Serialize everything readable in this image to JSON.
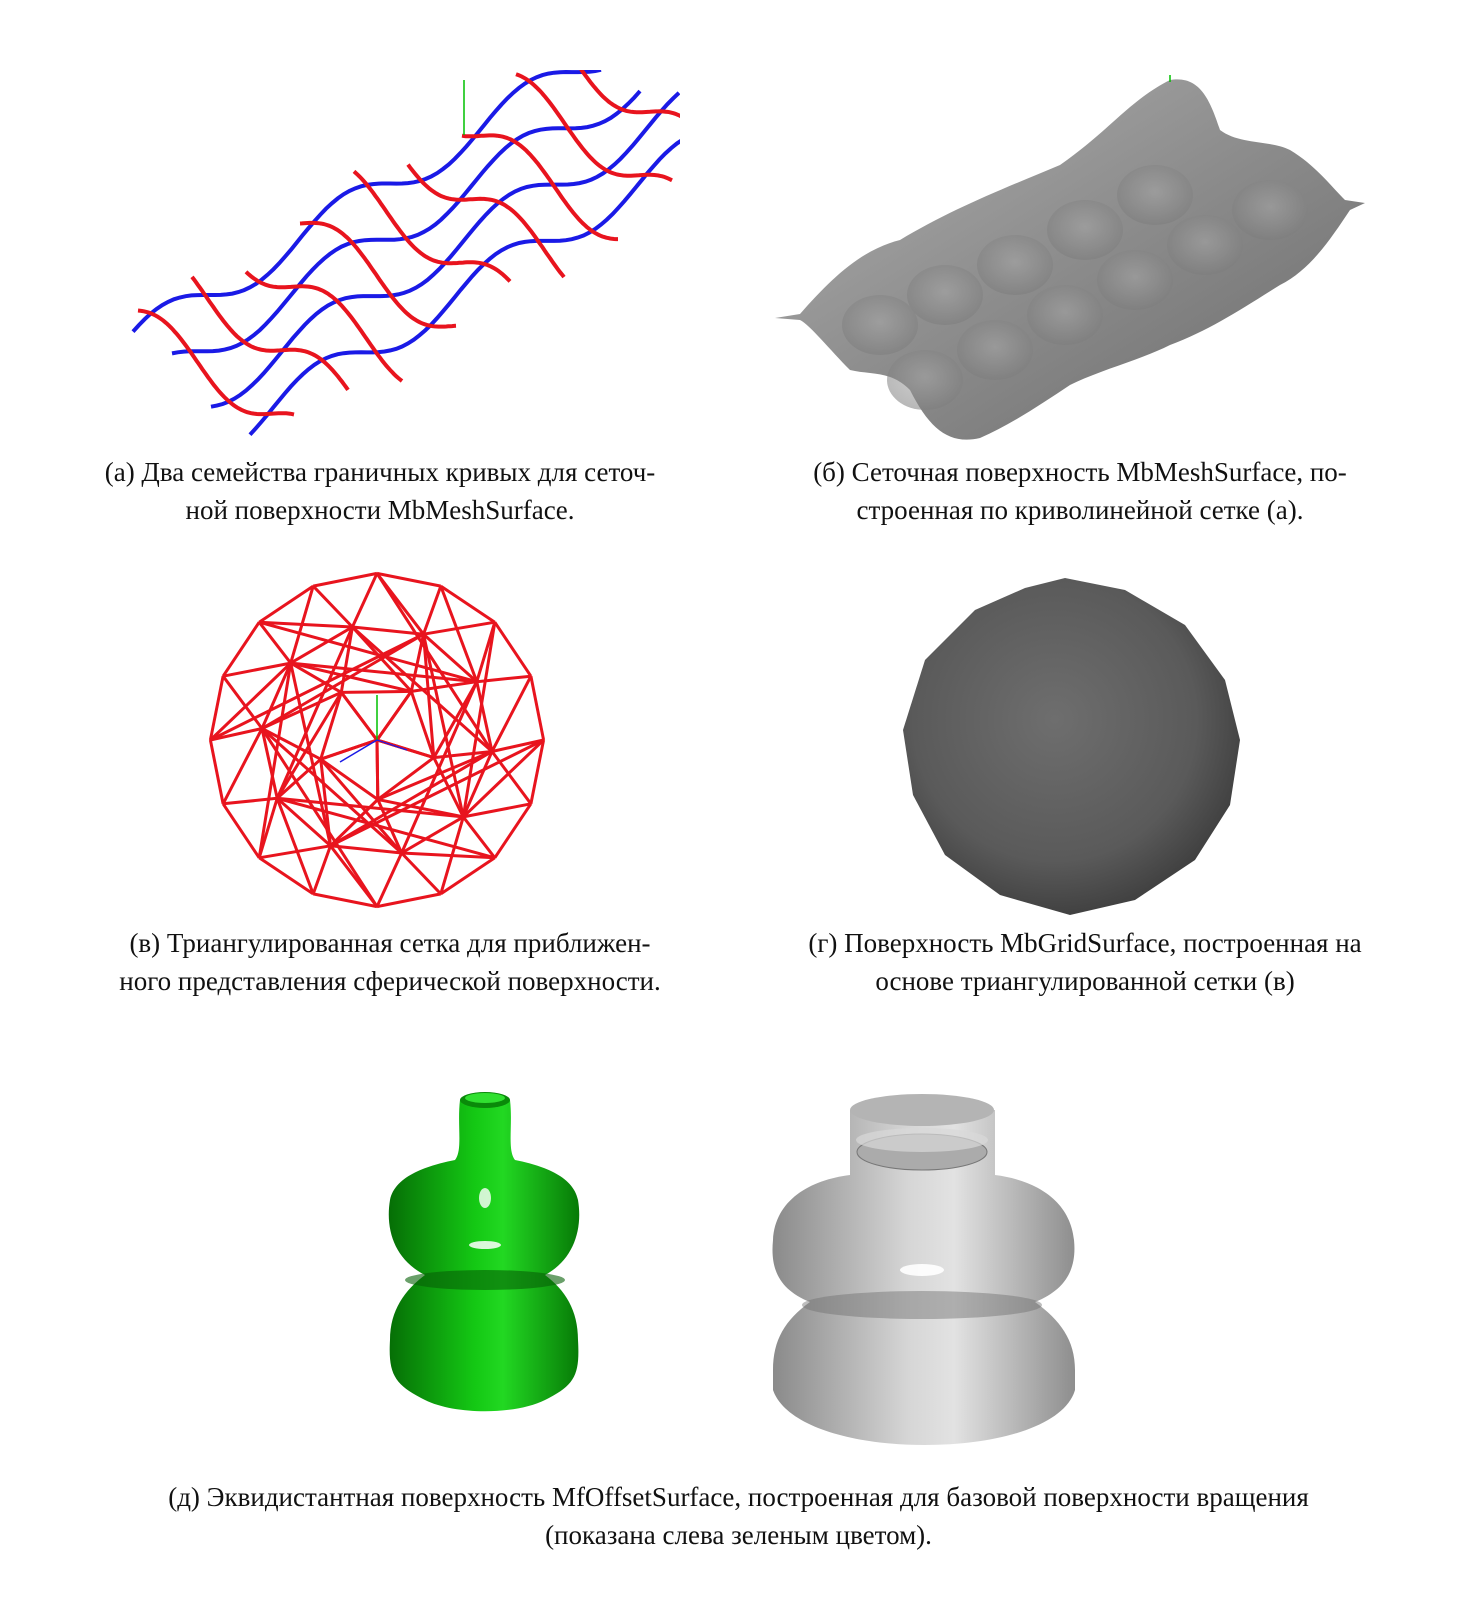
{
  "figures": {
    "a": {
      "caption_line1": "(а) Два семейства граничных кривых для сеточ-",
      "caption_line2": "ной поверхности MbMeshSurface."
    },
    "b": {
      "caption_line1": "(б) Сеточная поверхность MbMeshSurface, по-",
      "caption_line2": "строенная по криволинейной сетке (а)."
    },
    "c": {
      "caption_line1": "(в) Триангулированная сетка для приближен-",
      "caption_line2": "ного представления сферической поверхности."
    },
    "d": {
      "caption_line1": "(г) Поверхность MbGridSurface, построенная на",
      "caption_line2": "основе триангулированной сетки (в)"
    },
    "e": {
      "caption_line1": "(д) Эквидистантная поверхность MfOffsetSurface, построенная для базовой поверхности вращения",
      "caption_line2": "(показана слева зеленым цветом)."
    }
  },
  "colors": {
    "curve_red": "#e8141e",
    "curve_blue": "#1a1ae6",
    "surface_gray": "#8a8a8a",
    "base_green": "#0ab40a",
    "axis_green": "#00c000"
  }
}
